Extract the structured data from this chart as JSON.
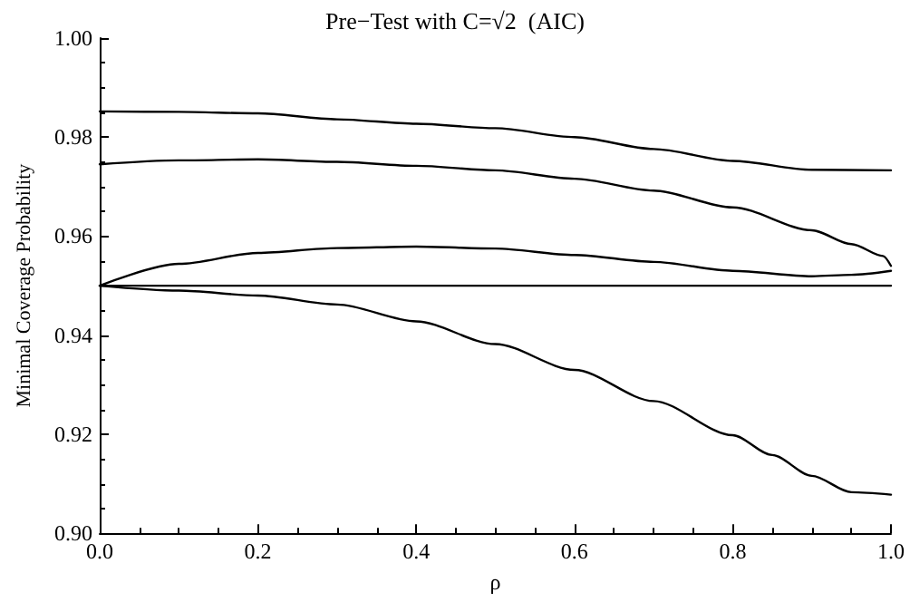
{
  "chart_data": {
    "type": "line",
    "title": "Pre−Test with C=√2  (AIC)",
    "xlabel": "ρ",
    "ylabel": "Minimal Coverage Probability",
    "series": [
      {
        "color": "#000000",
        "x": [
          0,
          0.1,
          0.2,
          0.3,
          0.4,
          0.5,
          0.6,
          0.7,
          0.8,
          0.9,
          1.0
        ],
        "values": [
          0.9852,
          0.9851,
          0.9848,
          0.9836,
          0.9827,
          0.9818,
          0.98,
          0.9776,
          0.9752,
          0.9734,
          0.9733
        ]
      },
      {
        "color": "#000000",
        "x": [
          0,
          0.1,
          0.2,
          0.3,
          0.4,
          0.5,
          0.6,
          0.7,
          0.8,
          0.9,
          0.95,
          0.99,
          1.0
        ],
        "values": [
          0.9745,
          0.9753,
          0.9755,
          0.975,
          0.9742,
          0.9733,
          0.9716,
          0.9692,
          0.9658,
          0.9612,
          0.9584,
          0.956,
          0.954
        ]
      },
      {
        "color": "#000000",
        "x": [
          0,
          0.1,
          0.2,
          0.3,
          0.4,
          0.5,
          0.6,
          0.7,
          0.8,
          0.9,
          0.95,
          1.0
        ],
        "values": [
          0.95,
          0.9544,
          0.9566,
          0.9576,
          0.9579,
          0.9575,
          0.9562,
          0.9548,
          0.953,
          0.9519,
          0.9522,
          0.953
        ]
      },
      {
        "color": "#000000",
        "x": [
          0,
          1.0
        ],
        "values": [
          0.95,
          0.95
        ]
      },
      {
        "color": "#000000",
        "x": [
          0,
          0.1,
          0.2,
          0.3,
          0.4,
          0.5,
          0.6,
          0.7,
          0.8,
          0.85,
          0.9,
          0.95,
          1.0
        ],
        "values": [
          0.95,
          0.949,
          0.948,
          0.9462,
          0.9428,
          0.9382,
          0.933,
          0.9267,
          0.9198,
          0.9158,
          0.9116,
          0.9083,
          0.9078
        ]
      }
    ],
    "xlim": [
      0,
      1
    ],
    "xticks": [
      {
        "value": 0,
        "label": "0.0"
      },
      0.2,
      0.4,
      0.6,
      0.8,
      {
        "value": 1,
        "label": "1.0"
      }
    ],
    "ylim": [
      0.9,
      1.0
    ],
    "yticks": [
      {
        "value": 0.9,
        "label": "0.90"
      },
      0.92,
      0.94,
      0.96,
      0.98,
      {
        "value": 1,
        "label": "1.00"
      }
    ],
    "grid": false,
    "marker": "none",
    "line_style": "solid"
  }
}
